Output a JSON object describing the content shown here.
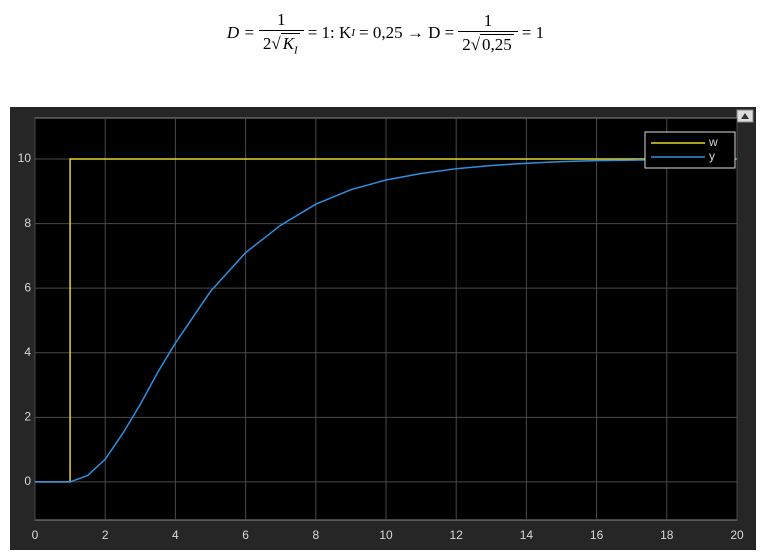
{
  "formula": {
    "lhs": "D =",
    "frac1_num": "1",
    "frac1_den_coef": "2",
    "frac1_den_rad": "K",
    "frac1_den_sub": "I",
    "mid1": "= 1: K",
    "mid1_sub": "I",
    "mid2": "= 0,25 → D =",
    "frac2_num": "1",
    "frac2_den_coef": "2",
    "frac2_den_rad": "0,25",
    "rhs": "= 1"
  },
  "chart_data": {
    "type": "line",
    "xlim": [
      0,
      20
    ],
    "xticks": [
      0,
      2,
      4,
      6,
      8,
      10,
      12,
      14,
      16,
      18,
      20
    ],
    "ylim": [
      -1.18,
      11.27
    ],
    "yticks": [
      0,
      2,
      4,
      6,
      8,
      10
    ],
    "grid": true,
    "legend": "upper right",
    "series": [
      {
        "name": "w",
        "color": "#e6d52c",
        "x": [
          0,
          1,
          1,
          20
        ],
        "values": [
          0,
          0,
          10,
          10
        ]
      },
      {
        "name": "y",
        "color": "#2f8fe0",
        "x": [
          0,
          1,
          1.5,
          2,
          2.5,
          3,
          3.5,
          4,
          4.5,
          5,
          5.5,
          6,
          7,
          8,
          9,
          10,
          11,
          12,
          13,
          14,
          15,
          16,
          18,
          20
        ],
        "values": [
          0,
          0,
          0.2,
          0.7,
          1.5,
          2.4,
          3.4,
          4.3,
          5.1,
          5.9,
          6.5,
          7.1,
          7.95,
          8.6,
          9.05,
          9.35,
          9.55,
          9.7,
          9.8,
          9.87,
          9.92,
          9.95,
          9.98,
          10
        ]
      }
    ]
  }
}
